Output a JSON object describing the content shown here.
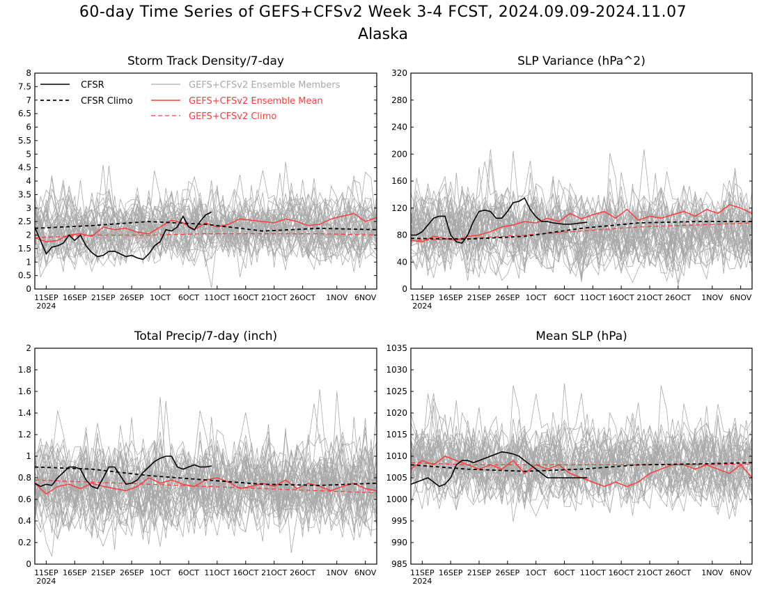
{
  "header": {
    "title": "60-day Time Series of GEFS+CFSv2 Week 3-4 FCST, 2024.09.09-2024.11.07",
    "subtitle": "Alaska"
  },
  "legend": {
    "cfsr": "CFSR",
    "cfsr_climo": "CFSR Climo",
    "members": "GEFS+CFSv2 Ensemble Members",
    "mean": "GEFS+CFSv2 Ensemble Mean",
    "climo": "GEFS+CFSv2 Climo"
  },
  "colors": {
    "cfsr": "#000000",
    "members": "#a8a8a8",
    "mean": "#ff3b3b",
    "climo": "#ff3b3b"
  },
  "x_axis": {
    "tick_days": [
      2,
      7,
      12,
      17,
      22,
      27,
      32,
      37,
      42,
      47,
      53,
      58
    ],
    "tick_labels": [
      "11SEP",
      "16SEP",
      "21SEP",
      "26SEP",
      "1OCT",
      "6OCT",
      "11OCT",
      "16OCT",
      "21OCT",
      "26OCT",
      "1NOV",
      "6NOV"
    ],
    "year_label": "2024",
    "range_days": [
      0,
      60
    ]
  },
  "chart_data": [
    {
      "type": "line",
      "title": "Storm Track Density/7-day",
      "ylim": [
        0,
        8
      ],
      "yticks": [
        0,
        0.5,
        1,
        1.5,
        2,
        2.5,
        3,
        3.5,
        4,
        4.5,
        5,
        5.5,
        6,
        6.5,
        7,
        7.5,
        8
      ],
      "ytick_labels": [
        "0",
        "0.5",
        "1",
        "1.5",
        "2",
        "2.5",
        "3",
        "3.5",
        "4",
        "4.5",
        "5",
        "5.5",
        "6",
        "6.5",
        "7",
        "7.5",
        "8"
      ],
      "member_base": 2.2,
      "member_spread": 0.8,
      "members_count": 40,
      "series": [
        {
          "name": "CFSR",
          "x": [
            0,
            1,
            2,
            3,
            4,
            5,
            6,
            7,
            8,
            9,
            10,
            11,
            12,
            13,
            14,
            15,
            16,
            17,
            18,
            19,
            20,
            21,
            22,
            23,
            24,
            25,
            26,
            27,
            28,
            29,
            30,
            31
          ],
          "values": [
            2.3,
            1.8,
            1.3,
            1.55,
            1.6,
            1.7,
            2.0,
            1.8,
            2.0,
            1.6,
            1.35,
            1.2,
            1.25,
            1.4,
            1.4,
            1.3,
            1.2,
            1.25,
            1.15,
            1.1,
            1.3,
            1.6,
            1.75,
            2.2,
            2.15,
            2.3,
            2.7,
            2.3,
            2.2,
            2.5,
            2.75,
            2.85
          ]
        },
        {
          "name": "CFSR Climo",
          "x": [
            0,
            10,
            20,
            30,
            40,
            50,
            60
          ],
          "values": [
            2.25,
            2.35,
            2.5,
            2.4,
            2.15,
            2.25,
            2.2
          ]
        },
        {
          "name": "GEFS+CFSv2 Ensemble Mean",
          "x": [
            0,
            2,
            4,
            6,
            8,
            10,
            12,
            14,
            16,
            18,
            20,
            22,
            24,
            26,
            28,
            30,
            32,
            34,
            36,
            38,
            40,
            42,
            44,
            46,
            48,
            50,
            52,
            54,
            56,
            58,
            60
          ],
          "values": [
            1.9,
            1.75,
            1.8,
            2.0,
            2.05,
            1.95,
            2.3,
            2.2,
            2.25,
            2.1,
            2.05,
            2.3,
            2.55,
            2.45,
            2.2,
            2.45,
            2.3,
            2.4,
            2.6,
            2.55,
            2.5,
            2.45,
            2.6,
            2.5,
            2.35,
            2.4,
            2.6,
            2.7,
            2.8,
            2.5,
            2.65
          ]
        },
        {
          "name": "GEFS+CFSv2 Climo",
          "x": [
            0,
            10,
            20,
            30,
            40,
            50,
            60
          ],
          "values": [
            1.9,
            2.0,
            2.0,
            2.05,
            2.05,
            2.05,
            2.0
          ]
        }
      ]
    },
    {
      "type": "line",
      "title": "SLP Variance (hPa^2)",
      "ylim": [
        0,
        320
      ],
      "yticks": [
        0,
        40,
        80,
        120,
        160,
        200,
        240,
        280,
        320
      ],
      "ytick_labels": [
        "0",
        "40",
        "80",
        "120",
        "160",
        "200",
        "240",
        "280",
        "320"
      ],
      "member_base": 85,
      "member_spread": 38,
      "members_count": 40,
      "series": [
        {
          "name": "CFSR",
          "x": [
            0,
            1,
            2,
            3,
            4,
            5,
            6,
            7,
            8,
            9,
            10,
            11,
            12,
            13,
            14,
            15,
            16,
            17,
            18,
            19,
            20,
            21,
            22,
            23,
            24,
            25,
            26,
            27,
            28,
            29,
            30,
            31
          ],
          "values": [
            80,
            80,
            85,
            95,
            105,
            108,
            108,
            80,
            70,
            68,
            80,
            100,
            115,
            117,
            115,
            105,
            105,
            115,
            128,
            130,
            135,
            118,
            107,
            100,
            100,
            98,
            97,
            96,
            96,
            97,
            98,
            99
          ]
        },
        {
          "name": "CFSR Climo",
          "x": [
            0,
            10,
            20,
            30,
            40,
            50,
            60
          ],
          "values": [
            75,
            74,
            78,
            90,
            98,
            100,
            100
          ]
        },
        {
          "name": "GEFS+CFSv2 Ensemble Mean",
          "x": [
            0,
            2,
            4,
            6,
            8,
            10,
            12,
            14,
            16,
            18,
            20,
            22,
            24,
            26,
            28,
            30,
            32,
            34,
            36,
            38,
            40,
            42,
            44,
            46,
            48,
            50,
            52,
            54,
            56,
            58,
            60
          ],
          "values": [
            72,
            70,
            78,
            75,
            72,
            78,
            80,
            85,
            92,
            95,
            100,
            98,
            105,
            100,
            112,
            104,
            110,
            115,
            105,
            118,
            102,
            108,
            105,
            110,
            115,
            108,
            118,
            112,
            125,
            120,
            112
          ]
        },
        {
          "name": "GEFS+CFSv2 Climo",
          "x": [
            0,
            10,
            20,
            30,
            40,
            50,
            60
          ],
          "values": [
            72,
            75,
            80,
            86,
            92,
            95,
            98
          ]
        }
      ]
    },
    {
      "type": "line",
      "title": "Total Precip/7-day (inch)",
      "ylim": [
        0,
        2
      ],
      "yticks": [
        0,
        0.2,
        0.4,
        0.6,
        0.8,
        1,
        1.2,
        1.4,
        1.6,
        1.8,
        2
      ],
      "ytick_labels": [
        "0",
        "0.2",
        "0.4",
        "0.6",
        "0.8",
        "1",
        "1.2",
        "1.4",
        "1.6",
        "1.8",
        "2"
      ],
      "member_base": 0.72,
      "member_spread": 0.28,
      "members_count": 40,
      "series": [
        {
          "name": "CFSR",
          "x": [
            0,
            1,
            2,
            3,
            4,
            5,
            6,
            7,
            8,
            9,
            10,
            11,
            12,
            13,
            14,
            15,
            16,
            17,
            18,
            19,
            20,
            21,
            22,
            23,
            24,
            25,
            26,
            27,
            28,
            29,
            30,
            31
          ],
          "values": [
            0.75,
            0.72,
            0.74,
            0.73,
            0.8,
            0.85,
            0.9,
            0.9,
            0.88,
            0.78,
            0.72,
            0.7,
            0.8,
            0.9,
            0.9,
            0.82,
            0.74,
            0.75,
            0.78,
            0.85,
            0.9,
            0.95,
            0.98,
            1.0,
            1.0,
            0.9,
            0.88,
            0.9,
            0.92,
            0.9,
            0.9,
            0.91
          ]
        },
        {
          "name": "CFSR Climo",
          "x": [
            0,
            10,
            20,
            30,
            40,
            50,
            60
          ],
          "values": [
            0.9,
            0.88,
            0.82,
            0.78,
            0.74,
            0.73,
            0.75
          ]
        },
        {
          "name": "GEFS+CFSv2 Ensemble Mean",
          "x": [
            0,
            2,
            4,
            6,
            8,
            10,
            12,
            14,
            16,
            18,
            20,
            22,
            24,
            26,
            28,
            30,
            32,
            34,
            36,
            38,
            40,
            42,
            44,
            46,
            48,
            50,
            52,
            54,
            56,
            58,
            60
          ],
          "values": [
            0.75,
            0.65,
            0.72,
            0.74,
            0.7,
            0.75,
            0.72,
            0.7,
            0.68,
            0.72,
            0.8,
            0.75,
            0.78,
            0.74,
            0.72,
            0.78,
            0.8,
            0.76,
            0.7,
            0.72,
            0.75,
            0.72,
            0.78,
            0.7,
            0.75,
            0.72,
            0.68,
            0.72,
            0.75,
            0.7,
            0.68
          ]
        },
        {
          "name": "GEFS+CFSv2 Climo",
          "x": [
            0,
            10,
            20,
            30,
            40,
            50,
            60
          ],
          "values": [
            0.78,
            0.76,
            0.74,
            0.72,
            0.7,
            0.68,
            0.66
          ]
        }
      ]
    },
    {
      "type": "line",
      "title": "Mean SLP (hPa)",
      "ylim": [
        985,
        1035
      ],
      "yticks": [
        985,
        990,
        995,
        1000,
        1005,
        1010,
        1015,
        1020,
        1025,
        1030,
        1035
      ],
      "ytick_labels": [
        "985",
        "990",
        "995",
        "1000",
        "1005",
        "1010",
        "1015",
        "1020",
        "1025",
        "1030",
        "1035"
      ],
      "member_base": 1008,
      "member_spread": 6,
      "members_count": 40,
      "series": [
        {
          "name": "CFSR",
          "x": [
            0,
            1,
            2,
            3,
            4,
            5,
            6,
            7,
            8,
            9,
            10,
            11,
            12,
            13,
            14,
            15,
            16,
            17,
            18,
            19,
            20,
            21,
            22,
            23,
            24,
            25,
            26,
            27,
            28,
            29,
            30,
            31
          ],
          "values": [
            1003.5,
            1004,
            1004.5,
            1005,
            1004,
            1003,
            1003.5,
            1005,
            1008,
            1009,
            1009,
            1008.5,
            1009,
            1009.5,
            1010,
            1010.5,
            1011,
            1010.8,
            1010.5,
            1010,
            1009,
            1008,
            1007,
            1006,
            1005,
            1005,
            1005,
            1005,
            1005,
            1005,
            1005,
            1005
          ]
        },
        {
          "name": "CFSR Climo",
          "x": [
            0,
            10,
            20,
            30,
            40,
            50,
            60
          ],
          "values": [
            1008,
            1007,
            1006.5,
            1007,
            1008,
            1008.2,
            1008.5
          ]
        },
        {
          "name": "GEFS+CFSv2 Ensemble Mean",
          "x": [
            0,
            2,
            4,
            6,
            8,
            10,
            12,
            14,
            16,
            18,
            20,
            22,
            24,
            26,
            28,
            30,
            32,
            34,
            36,
            38,
            40,
            42,
            44,
            46,
            48,
            50,
            52,
            54,
            56,
            58,
            60
          ],
          "values": [
            1007,
            1009,
            1008,
            1010,
            1009,
            1008,
            1007,
            1008,
            1007,
            1009,
            1006,
            1008,
            1007,
            1008,
            1006,
            1005,
            1004,
            1003,
            1004,
            1003,
            1004,
            1006,
            1007,
            1008,
            1008,
            1007,
            1008,
            1007,
            1006,
            1008,
            1005
          ]
        },
        {
          "name": "GEFS+CFSv2 Climo",
          "x": [
            0,
            10,
            20,
            30,
            40,
            50,
            60
          ],
          "values": [
            1008.5,
            1008,
            1008,
            1008,
            1008,
            1008,
            1008.2
          ]
        }
      ]
    }
  ]
}
